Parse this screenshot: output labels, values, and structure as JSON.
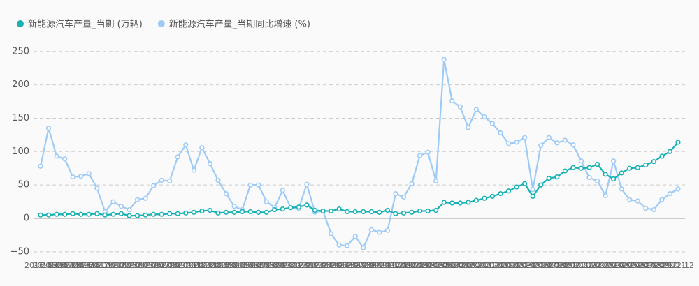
{
  "chart_data": {
    "type": "line",
    "categories": [
      "2016-05",
      "2016-06",
      "2016-07",
      "2016-08",
      "2016-09",
      "2016-10",
      "2016-11",
      "2016-12",
      "2017-01",
      "2017-02",
      "2017-03",
      "2017-04",
      "2017-05",
      "2017-06",
      "2017-07",
      "2017-08",
      "2017-09",
      "2017-10",
      "2017-11",
      "2017-12",
      "2018-01",
      "2018-02",
      "2018-03",
      "2018-04",
      "2018-05",
      "2018-06",
      "2018-07",
      "2018-08",
      "2018-09",
      "2018-10",
      "2018-11",
      "2018-12",
      "2019-01",
      "2019-02",
      "2019-03",
      "2019-04",
      "2019-05",
      "2019-06",
      "2019-07",
      "2019-08",
      "2019-09",
      "2019-10",
      "2019-11",
      "2019-12",
      "2020-01",
      "2020-02",
      "2020-03",
      "2020-04",
      "2020-05",
      "2020-06",
      "2020-07",
      "2020-08",
      "2020-09",
      "2020-10",
      "2020-11",
      "2020-12",
      "2021-01",
      "2021-02",
      "2021-03",
      "2021-04",
      "2021-05",
      "2021-06",
      "2021-07",
      "2021-08",
      "2021-09",
      "2021-10",
      "2021-11",
      "2021-12",
      "2022-01",
      "2022-02",
      "2022-03",
      "2022-04",
      "2022-05",
      "2022-06",
      "2022-07",
      "2022-08",
      "2022-09",
      "2022-10",
      "2022-11",
      "2022-12"
    ],
    "series": [
      {
        "name": "新能源汽车产量_当期 (万辆)",
        "color": "#17b0b3",
        "values": [
          5,
          5,
          6,
          6,
          7,
          6,
          6,
          7,
          5,
          6,
          7,
          4,
          4,
          5,
          6,
          6,
          7,
          7,
          8,
          9,
          11,
          12,
          8,
          9,
          9,
          10,
          10,
          9,
          9,
          13,
          14,
          16,
          17,
          20,
          12,
          11,
          11,
          14,
          10,
          10,
          10,
          10,
          9,
          12,
          7,
          8,
          9,
          11,
          11,
          12,
          24,
          23,
          23,
          24,
          27,
          30,
          33,
          37,
          41,
          47,
          52,
          33,
          50,
          60,
          62,
          71,
          76,
          75,
          76,
          81,
          66,
          59,
          68,
          75,
          76,
          80,
          85,
          93,
          100,
          114
        ]
      },
      {
        "name": "新能源汽车产量_当期同比增速 (%)",
        "color": "#9ecbf5",
        "values": [
          78,
          135,
          93,
          89,
          62,
          63,
          67,
          45,
          10,
          25,
          18,
          13,
          28,
          30,
          49,
          57,
          56,
          92,
          110,
          72,
          106,
          82,
          57,
          37,
          18,
          13,
          50,
          50,
          25,
          16,
          42,
          16,
          15,
          51,
          9,
          11,
          -23,
          -40,
          -41,
          -27,
          -44,
          -17,
          -21,
          -18,
          37,
          32,
          52,
          94,
          99,
          56,
          238,
          176,
          167,
          136,
          163,
          152,
          142,
          128,
          112,
          114,
          121,
          43,
          109,
          121,
          113,
          117,
          110,
          86,
          61,
          56,
          34,
          86,
          44,
          28,
          26,
          15,
          13,
          28,
          37,
          44
        ]
      }
    ],
    "ylim": [
      -60,
      260
    ],
    "yticks": [
      {
        "value": -50,
        "label": "−50"
      },
      0,
      50,
      100,
      150,
      200,
      250
    ],
    "grid": true
  }
}
